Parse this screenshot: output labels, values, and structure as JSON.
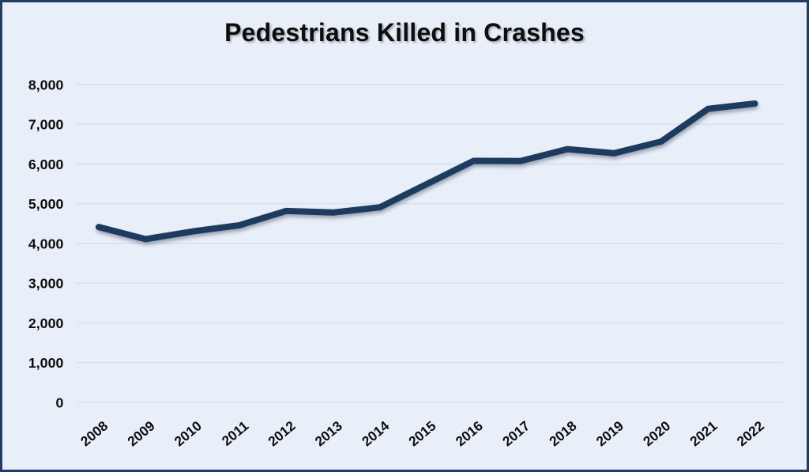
{
  "colors": {
    "background": "#e9eff8",
    "border": "#1f3c63",
    "line": "#1e3a5e",
    "gridline": "#d7e3f1",
    "text": "#0d0d0d"
  },
  "chart_data": {
    "type": "line",
    "title": "Pedestrians Killed in Crashes",
    "x": [
      "2008",
      "2009",
      "2010",
      "2011",
      "2012",
      "2013",
      "2014",
      "2015",
      "2016",
      "2017",
      "2018",
      "2019",
      "2020",
      "2021",
      "2022"
    ],
    "values": [
      4414,
      4109,
      4302,
      4457,
      4818,
      4779,
      4910,
      5494,
      6080,
      6075,
      6374,
      6272,
      6565,
      7388,
      7522
    ],
    "xlabel": "",
    "ylabel": "",
    "ylim": [
      0,
      8000
    ],
    "yticks": [
      0,
      1000,
      2000,
      3000,
      4000,
      5000,
      6000,
      7000,
      8000
    ],
    "ytick_labels": [
      "0",
      "1,000",
      "2,000",
      "3,000",
      "4,000",
      "5,000",
      "6,000",
      "7,000",
      "8,000"
    ],
    "grid": "horizontal",
    "legend": "none"
  }
}
